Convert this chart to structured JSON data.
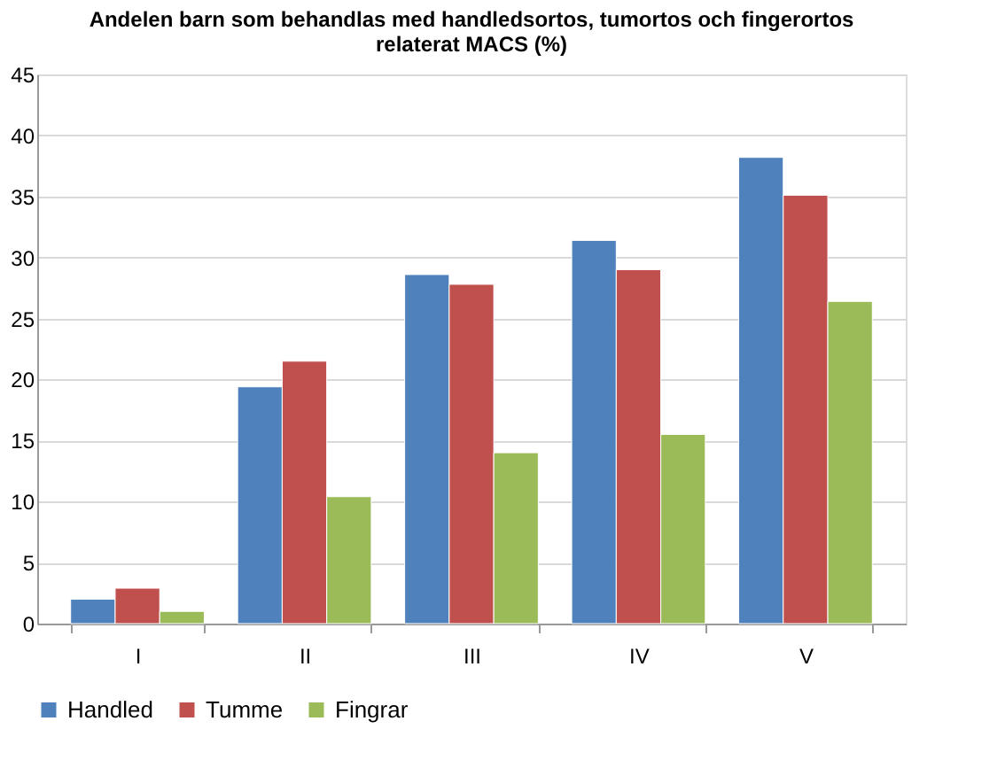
{
  "chart_data": {
    "type": "bar",
    "title": [
      "Andelen barn som behandlas med handledsortos, tumortos och fingerortos",
      "relaterat MACS (%)"
    ],
    "categories": [
      "I",
      "II",
      "III",
      "IV",
      "V"
    ],
    "series": [
      {
        "name": "Handled",
        "color": "#4f81bd",
        "values": [
          2.0,
          19.4,
          28.6,
          31.4,
          38.2
        ]
      },
      {
        "name": "Tumme",
        "color": "#c0504d",
        "values": [
          2.9,
          21.5,
          27.8,
          29.0,
          35.1
        ]
      },
      {
        "name": "Fingrar",
        "color": "#9bbb59",
        "values": [
          1.0,
          10.4,
          14.0,
          15.5,
          26.4
        ]
      }
    ],
    "ylim": [
      0,
      45
    ],
    "yticks": [
      0,
      5,
      10,
      15,
      20,
      25,
      30,
      35,
      40,
      45
    ],
    "grid": "y",
    "legend": "bottom"
  }
}
